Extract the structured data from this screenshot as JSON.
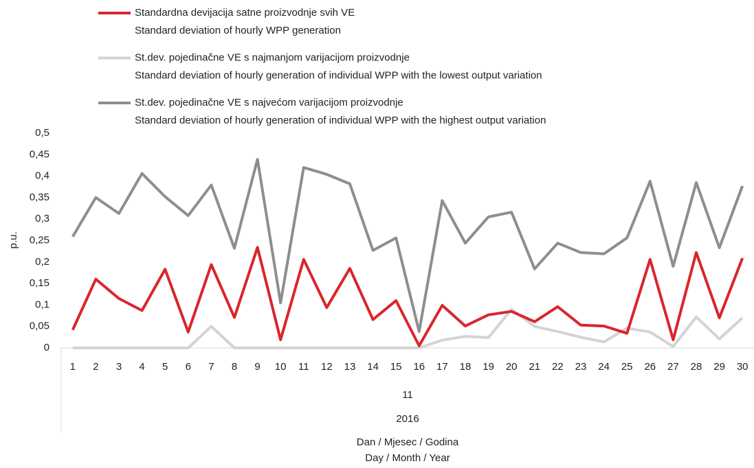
{
  "chart_data": {
    "type": "line",
    "y_label": "p.u.",
    "x_label": [
      "Dan / Mjesec / Godina",
      "Day / Month / Year"
    ],
    "categories": [
      "1",
      "2",
      "3",
      "4",
      "5",
      "6",
      "7",
      "8",
      "9",
      "10",
      "11",
      "12",
      "13",
      "14",
      "15",
      "16",
      "17",
      "18",
      "19",
      "20",
      "21",
      "22",
      "23",
      "24",
      "25",
      "26",
      "27",
      "28",
      "29",
      "30"
    ],
    "x_month": "11",
    "x_year": "2016",
    "ylim": [
      0,
      0.5
    ],
    "yticks": [
      {
        "value": 0,
        "label": "0"
      },
      {
        "value": 0.05,
        "label": "0,05"
      },
      {
        "value": 0.1,
        "label": "0,1"
      },
      {
        "value": 0.15,
        "label": "0,15"
      },
      {
        "value": 0.2,
        "label": "0,2"
      },
      {
        "value": 0.25,
        "label": "0,25"
      },
      {
        "value": 0.3,
        "label": "0,3"
      },
      {
        "value": 0.35,
        "label": "0,35"
      },
      {
        "value": 0.4,
        "label": "0,4"
      },
      {
        "value": 0.45,
        "label": "0,45"
      },
      {
        "value": 0.5,
        "label": "0,5"
      }
    ],
    "grid": false,
    "legend": "top",
    "series": [
      {
        "name": [
          "Standardna devijacija satne proizvodnje svih VE",
          "Standard deviation of hourly WPP generation"
        ],
        "color": "#d9262c",
        "values": [
          0.042,
          0.16,
          0.115,
          0.087,
          0.183,
          0.037,
          0.194,
          0.071,
          0.234,
          0.019,
          0.206,
          0.094,
          0.185,
          0.066,
          0.11,
          0.005,
          0.099,
          0.051,
          0.077,
          0.085,
          0.061,
          0.096,
          0.053,
          0.051,
          0.034,
          0.206,
          0.019,
          0.222,
          0.07,
          0.209
        ]
      },
      {
        "name": [
          "St.dev. pojedinačne VE s najmanjom varijacijom proizvodnje",
          "Standard deviation of hourly generation of individual WPP with the lowest output variation"
        ],
        "color": "#d3d3d3",
        "values": [
          0,
          0,
          0,
          0,
          0,
          0,
          0.05,
          0,
          0,
          0,
          0,
          0,
          0,
          0,
          0,
          0,
          0.018,
          0.027,
          0.024,
          0.09,
          0.05,
          0.038,
          0.025,
          0.014,
          0.046,
          0.037,
          0.003,
          0.072,
          0.021,
          0.07
        ]
      },
      {
        "name": [
          "St.dev. pojedinačne VE s najvećom varijacijom proizvodnje",
          "Standard deviation of hourly generation of individual WPP with the highest output variation"
        ],
        "color": "#8e8e8e",
        "values": [
          0.259,
          0.35,
          0.313,
          0.406,
          0.352,
          0.308,
          0.379,
          0.232,
          0.439,
          0.105,
          0.42,
          0.404,
          0.382,
          0.227,
          0.256,
          0.038,
          0.343,
          0.244,
          0.305,
          0.316,
          0.184,
          0.244,
          0.222,
          0.219,
          0.256,
          0.388,
          0.19,
          0.385,
          0.233,
          0.377
        ]
      }
    ]
  }
}
